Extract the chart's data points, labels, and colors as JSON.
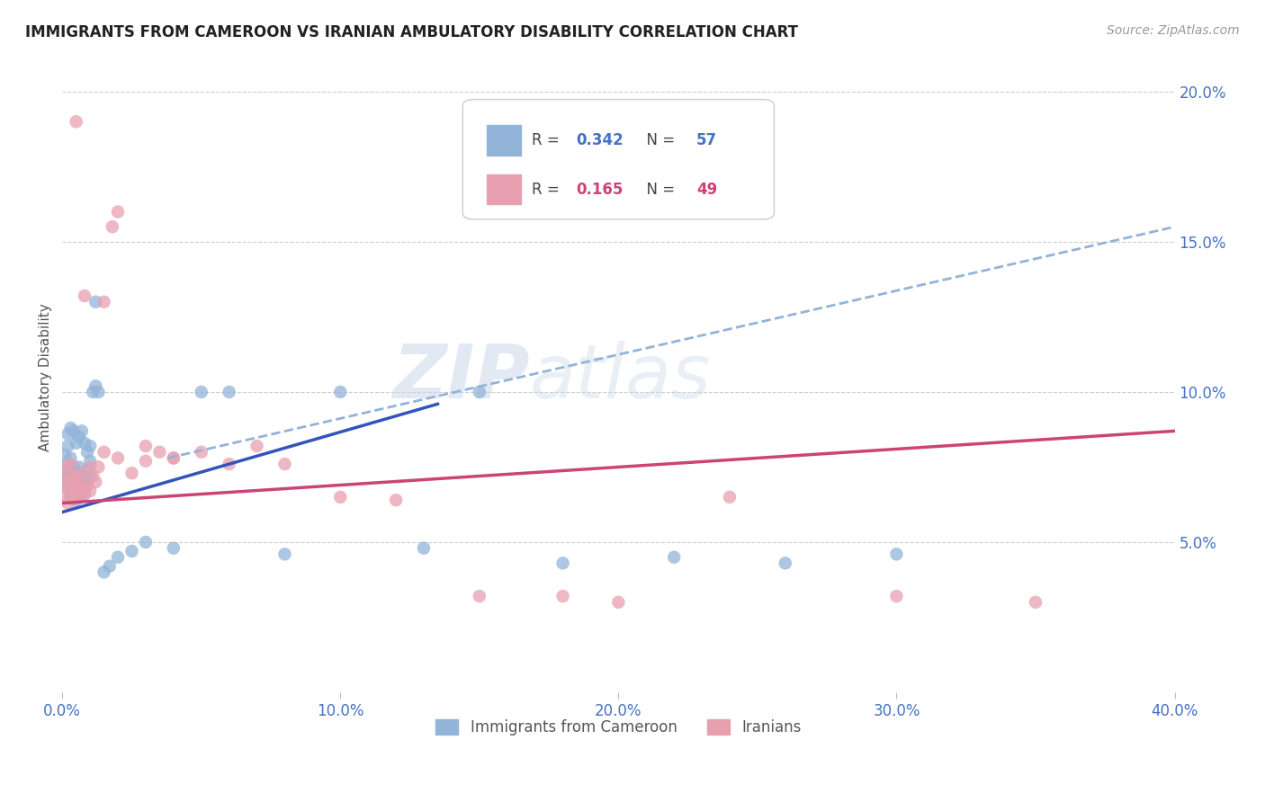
{
  "title": "IMMIGRANTS FROM CAMEROON VS IRANIAN AMBULATORY DISABILITY CORRELATION CHART",
  "source": "Source: ZipAtlas.com",
  "ylabel": "Ambulatory Disability",
  "xlim": [
    0.0,
    0.4
  ],
  "ylim": [
    0.0,
    0.21
  ],
  "yticks": [
    0.05,
    0.1,
    0.15,
    0.2
  ],
  "ytick_labels": [
    "5.0%",
    "10.0%",
    "15.0%",
    "20.0%"
  ],
  "xticks": [
    0.0,
    0.1,
    0.2,
    0.3,
    0.4
  ],
  "xtick_labels": [
    "0.0%",
    "10.0%",
    "20.0%",
    "30.0%",
    "40.0%"
  ],
  "blue_color": "#92b4d9",
  "pink_color": "#e8a0b0",
  "blue_line_color": "#3355bb",
  "pink_line_color": "#cc4477",
  "dashed_line_color": "#92b4d9",
  "legend_label1": "Immigrants from Cameroon",
  "legend_label2": "Iranians",
  "watermark": "ZIPatlas",
  "background_color": "#ffffff",
  "tick_label_color": "#4472c4",
  "blue_r": "0.342",
  "blue_n": "57",
  "pink_r": "0.165",
  "pink_n": "49",
  "blue_x": [
    0.001,
    0.001,
    0.001,
    0.002,
    0.002,
    0.002,
    0.002,
    0.003,
    0.003,
    0.003,
    0.003,
    0.004,
    0.004,
    0.004,
    0.005,
    0.005,
    0.005,
    0.006,
    0.006,
    0.006,
    0.007,
    0.007,
    0.008,
    0.008,
    0.009,
    0.009,
    0.01,
    0.01,
    0.011,
    0.012,
    0.013,
    0.015,
    0.017,
    0.02,
    0.025,
    0.03,
    0.04,
    0.05,
    0.06,
    0.08,
    0.1,
    0.13,
    0.15,
    0.18,
    0.22,
    0.26,
    0.3,
    0.002,
    0.003,
    0.004,
    0.005,
    0.006,
    0.007,
    0.008,
    0.009,
    0.01,
    0.012
  ],
  "blue_y": [
    0.07,
    0.074,
    0.079,
    0.068,
    0.072,
    0.076,
    0.082,
    0.065,
    0.069,
    0.073,
    0.078,
    0.067,
    0.071,
    0.075,
    0.064,
    0.068,
    0.073,
    0.066,
    0.07,
    0.075,
    0.068,
    0.072,
    0.066,
    0.071,
    0.069,
    0.074,
    0.072,
    0.077,
    0.1,
    0.102,
    0.1,
    0.04,
    0.042,
    0.045,
    0.047,
    0.05,
    0.048,
    0.1,
    0.1,
    0.046,
    0.1,
    0.048,
    0.1,
    0.043,
    0.045,
    0.043,
    0.046,
    0.086,
    0.088,
    0.087,
    0.083,
    0.085,
    0.087,
    0.083,
    0.08,
    0.082,
    0.13
  ],
  "pink_x": [
    0.001,
    0.001,
    0.001,
    0.002,
    0.002,
    0.002,
    0.003,
    0.003,
    0.003,
    0.004,
    0.004,
    0.005,
    0.005,
    0.006,
    0.006,
    0.007,
    0.007,
    0.008,
    0.009,
    0.01,
    0.011,
    0.012,
    0.013,
    0.015,
    0.018,
    0.02,
    0.025,
    0.03,
    0.035,
    0.04,
    0.05,
    0.06,
    0.07,
    0.08,
    0.1,
    0.12,
    0.15,
    0.18,
    0.2,
    0.24,
    0.3,
    0.35,
    0.005,
    0.008,
    0.01,
    0.015,
    0.02,
    0.03,
    0.04
  ],
  "pink_y": [
    0.065,
    0.07,
    0.075,
    0.063,
    0.068,
    0.073,
    0.066,
    0.071,
    0.076,
    0.064,
    0.069,
    0.067,
    0.072,
    0.065,
    0.07,
    0.068,
    0.073,
    0.066,
    0.069,
    0.067,
    0.072,
    0.07,
    0.075,
    0.13,
    0.155,
    0.16,
    0.073,
    0.077,
    0.08,
    0.078,
    0.08,
    0.076,
    0.082,
    0.076,
    0.065,
    0.064,
    0.032,
    0.032,
    0.03,
    0.065,
    0.032,
    0.03,
    0.19,
    0.132,
    0.075,
    0.08,
    0.078,
    0.082,
    0.078
  ],
  "blue_line_x0": 0.0,
  "blue_line_x1": 0.135,
  "blue_line_y0": 0.06,
  "blue_line_y1": 0.096,
  "dashed_line_x0": 0.038,
  "dashed_line_x1": 0.4,
  "dashed_line_y0": 0.078,
  "dashed_line_y1": 0.155,
  "pink_line_x0": 0.0,
  "pink_line_x1": 0.4,
  "pink_line_y0": 0.063,
  "pink_line_y1": 0.087
}
